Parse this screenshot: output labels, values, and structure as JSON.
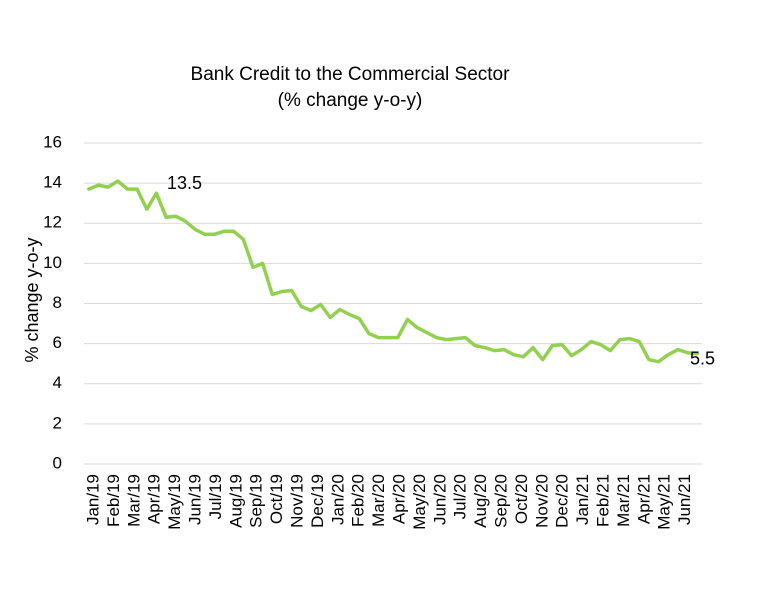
{
  "chart_data": {
    "type": "line",
    "title": "Bank Credit to the Commercial Sector",
    "subtitle": "(% change y-o-y)",
    "xlabel": "",
    "ylabel": "% change y-o-y",
    "ylim": [
      0,
      16
    ],
    "yticks": [
      0,
      2,
      4,
      6,
      8,
      10,
      12,
      14,
      16
    ],
    "grid": true,
    "legend": "none",
    "line_color": "#92d050",
    "x_tick_labels": [
      "Jan/19",
      "Feb/19",
      "Mar/19",
      "Apr/19",
      "May/19",
      "Jun/19",
      "Jul/19",
      "Aug/19",
      "Sep/19",
      "Oct/19",
      "Nov/19",
      "Dec/19",
      "Jan/20",
      "Feb/20",
      "Mar/20",
      "Apr/20",
      "May/20",
      "Jun/20",
      "Jul/20",
      "Aug/20",
      "Sep/20",
      "Oct/20",
      "Nov/20",
      "Dec/20",
      "Jan/21",
      "Feb/21",
      "Mar/21",
      "Apr/21",
      "May/21",
      "Jun/21"
    ],
    "series": [
      {
        "values": [
          13.7,
          13.9,
          13.8,
          14.1,
          13.7,
          13.7,
          12.7,
          13.5,
          12.3,
          12.35,
          12.1,
          11.7,
          11.45,
          11.45,
          11.6,
          11.6,
          11.2,
          9.8,
          10.0,
          8.45,
          8.6,
          8.65,
          7.85,
          7.65,
          7.95,
          7.3,
          7.7,
          7.45,
          7.25,
          6.5,
          6.3,
          6.3,
          6.3,
          7.2,
          6.8,
          6.55,
          6.3,
          6.2,
          6.25,
          6.3,
          5.9,
          5.8,
          5.65,
          5.7,
          5.45,
          5.35,
          5.8,
          5.2,
          5.9,
          5.95,
          5.4,
          5.7,
          6.1,
          5.95,
          5.65,
          6.2,
          6.25,
          6.1,
          5.2,
          5.1,
          5.45,
          5.7,
          5.55,
          5.5
        ]
      }
    ],
    "annotations": [
      {
        "text": "13.5",
        "value": 13.5
      },
      {
        "text": "5.5",
        "value": 5.5
      }
    ]
  }
}
